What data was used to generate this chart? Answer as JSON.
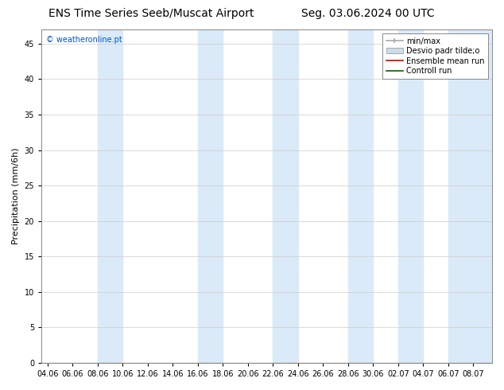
{
  "title_left": "ENS Time Series Seeb/Muscat Airport",
  "title_right": "Seg. 03.06.2024 00 UTC",
  "ylabel": "Precipitation (mm/6h)",
  "watermark": "© weatheronline.pt",
  "watermark_color": "#0055cc",
  "ylim": [
    0,
    47
  ],
  "yticks": [
    0,
    5,
    10,
    15,
    20,
    25,
    30,
    35,
    40,
    45
  ],
  "xtick_labels": [
    "04.06",
    "06.06",
    "08.06",
    "10.06",
    "12.06",
    "14.06",
    "16.06",
    "18.06",
    "20.06",
    "22.06",
    "24.06",
    "26.06",
    "28.06",
    "30.06",
    "02.07",
    "04.07",
    "06.07",
    "08.07"
  ],
  "xtick_positions": [
    0,
    2,
    4,
    6,
    8,
    10,
    12,
    14,
    16,
    18,
    20,
    22,
    24,
    26,
    28,
    30,
    32,
    34
  ],
  "xlim": [
    -0.5,
    35.5
  ],
  "shade_bands": [
    {
      "x_start": 4,
      "x_end": 6,
      "color": "#daeaf8"
    },
    {
      "x_start": 12,
      "x_end": 14,
      "color": "#daeaf8"
    },
    {
      "x_start": 18,
      "x_end": 20,
      "color": "#daeaf8"
    },
    {
      "x_start": 24,
      "x_end": 26,
      "color": "#daeaf8"
    },
    {
      "x_start": 28,
      "x_end": 30,
      "color": "#daeaf8"
    },
    {
      "x_start": 32,
      "x_end": 35.5,
      "color": "#daeaf8"
    }
  ],
  "bg_color": "#ffffff",
  "grid_color": "#cccccc",
  "title_fontsize": 10,
  "tick_fontsize": 7,
  "ylabel_fontsize": 8,
  "watermark_fontsize": 7,
  "legend_fontsize": 7
}
